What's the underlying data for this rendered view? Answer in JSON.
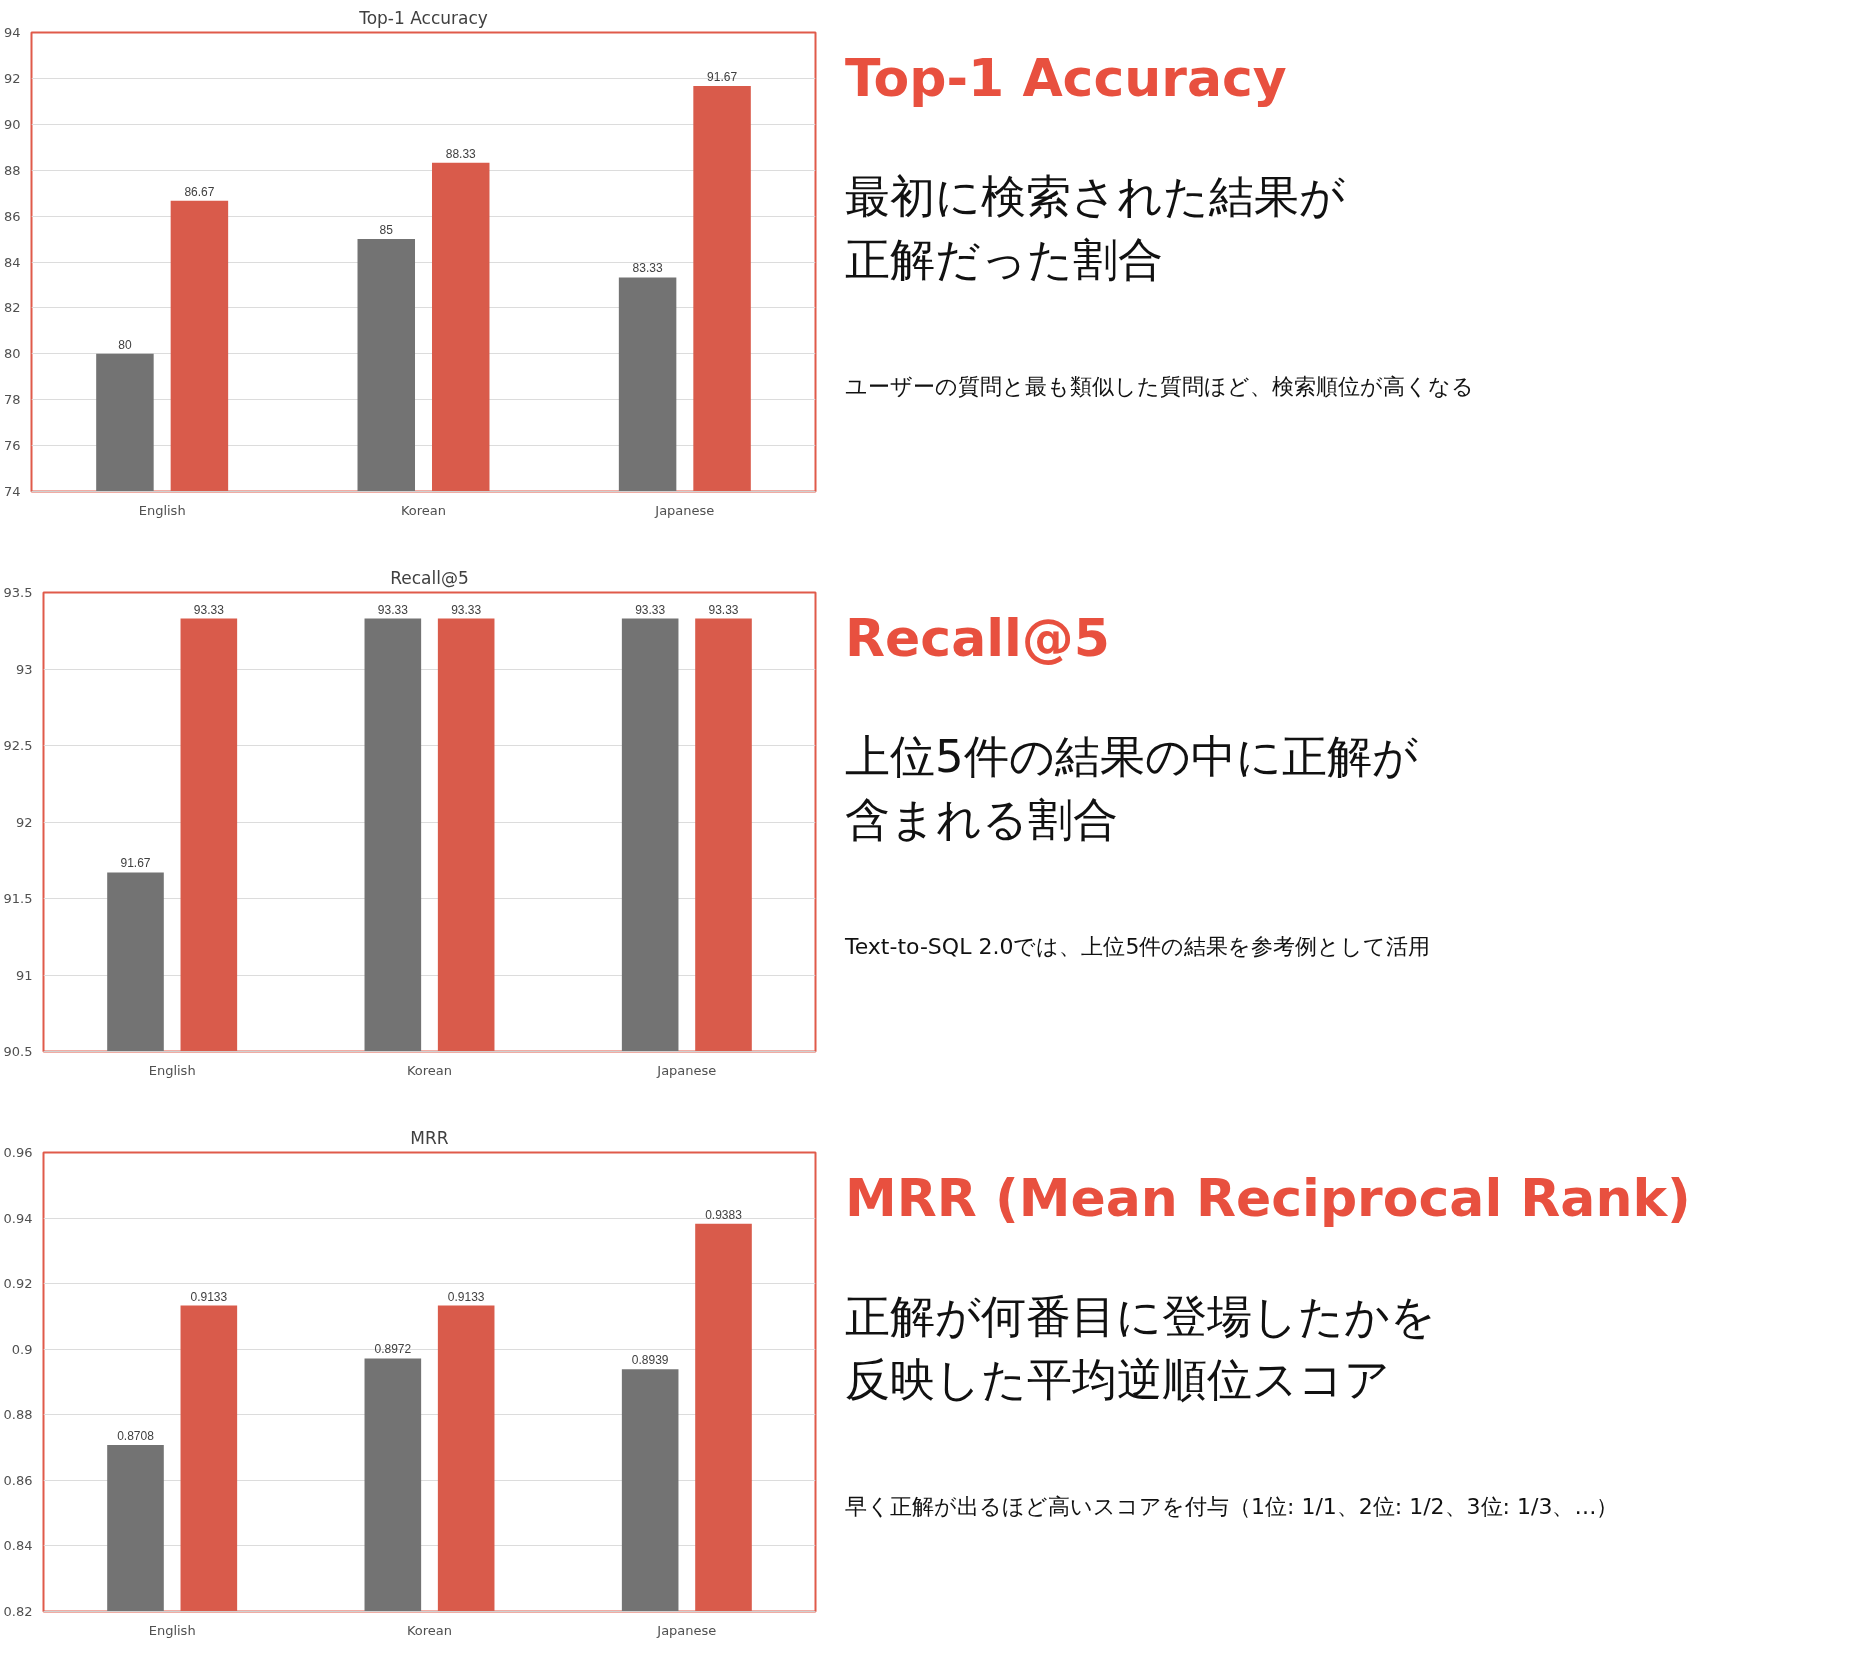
{
  "chart_data": [
    {
      "type": "bar",
      "title": "Top-1 Accuracy",
      "categories": [
        "English",
        "Korean",
        "Japanese"
      ],
      "series": [
        {
          "color": "#737373",
          "values": [
            80,
            85,
            83.33
          ]
        },
        {
          "color": "#d95b4b",
          "values": [
            86.67,
            88.33,
            91.67
          ]
        }
      ],
      "ylim": [
        74,
        94
      ],
      "yticks": [
        74,
        76,
        78,
        80,
        82,
        84,
        86,
        88,
        90,
        92,
        94
      ],
      "grid": "y",
      "data_labels": true,
      "annotations": [
        "Top-1 Accuracy",
        "最初に検索された結果が",
        "正解だった割合",
        "ユーザーの質問と最も類似した質問ほど、検索順位が高くなる"
      ]
    },
    {
      "type": "bar",
      "title": "Recall@5",
      "categories": [
        "English",
        "Korean",
        "Japanese"
      ],
      "series": [
        {
          "color": "#737373",
          "values": [
            91.67,
            93.33,
            93.33
          ]
        },
        {
          "color": "#d95b4b",
          "values": [
            93.33,
            93.33,
            93.33
          ]
        }
      ],
      "ylim": [
        90.5,
        93.5
      ],
      "yticks": [
        90.5,
        91,
        91.5,
        92,
        92.5,
        93,
        93.5
      ],
      "grid": "y",
      "data_labels": true,
      "annotations": [
        "Recall@5",
        "上位5件の結果の中に正解が",
        "含まれる割合",
        "Text-to-SQL 2.0では、上位5件の結果を参考例として活用"
      ]
    },
    {
      "type": "bar",
      "title": "MRR",
      "categories": [
        "English",
        "Korean",
        "Japanese"
      ],
      "series": [
        {
          "color": "#737373",
          "values": [
            0.8708,
            0.8972,
            0.8939
          ]
        },
        {
          "color": "#d95b4b",
          "values": [
            0.9133,
            0.9133,
            0.9383
          ]
        }
      ],
      "ylim": [
        0.82,
        0.96
      ],
      "yticks": [
        0.82,
        0.84,
        0.86,
        0.88,
        0.9,
        0.92,
        0.94,
        0.96
      ],
      "grid": "y",
      "data_labels": true,
      "annotations": [
        "MRR (Mean Reciprocal Rank)",
        "正解が何番目に登場したかを",
        "反映した平均逆順位スコア",
        "早く正解が出るほど高いスコアを付与（1位: 1/1、2位: 1/2、3位: 1/3、…）"
      ]
    }
  ]
}
